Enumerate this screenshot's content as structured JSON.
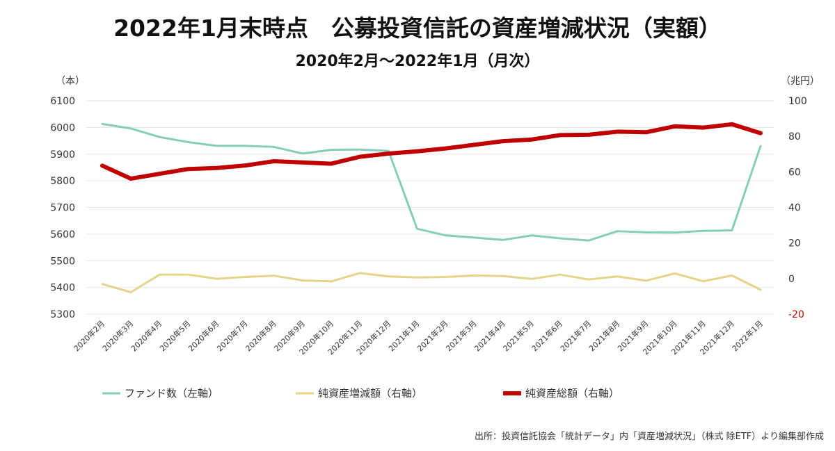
{
  "title": "2022年1月末時点　公募投資信託の資産増減状況（実額）",
  "subtitle": "2020年2月～2022年1月（月次）",
  "source": "出所：投資信託協会「統計データ」内「資産増減状況」（株式 除ETF）より編集部作成",
  "chart_data": {
    "type": "line",
    "title": "2022年1月末時点　公募投資信託の資産増減状況（実額）",
    "subtitle": "2020年2月～2022年1月（月次）",
    "left_axis_unit": "（本）",
    "right_axis_unit": "（兆円）",
    "left_ylim": [
      5300,
      6100
    ],
    "left_ticks": [
      "5300",
      "5400",
      "5500",
      "5600",
      "5700",
      "5800",
      "5900",
      "6000",
      "6100"
    ],
    "right_ylim": [
      -20,
      100
    ],
    "right_ticks": [
      "-20",
      "0",
      "20",
      "40",
      "60",
      "80",
      "100"
    ],
    "grid": "horizontal",
    "legend_position": "bottom",
    "categories": [
      "2020年2月",
      "2020年3月",
      "2020年4月",
      "2020年5月",
      "2020年6月",
      "2020年7月",
      "2020年8月",
      "2020年9月",
      "2020年10月",
      "2020年11月",
      "2020年12月",
      "2021年1月",
      "2021年2月",
      "2021年3月",
      "2021年4月",
      "2021年5月",
      "2021年6月",
      "2021年7月",
      "2021年8月",
      "2021年9月",
      "2021年10月",
      "2021年11月",
      "2021年12月",
      "2022年1月"
    ],
    "series": [
      {
        "name": "ファンド数（左軸）",
        "axis": "left",
        "color": "#86cdb8",
        "values": [
          6013,
          5996,
          5964,
          5945,
          5931,
          5931,
          5927,
          5902,
          5916,
          5917,
          5912,
          5620,
          5595,
          5587,
          5578,
          5595,
          5584,
          5576,
          5611,
          5607,
          5606,
          5612,
          5614,
          5930
        ]
      },
      {
        "name": "純資産増減額（右軸）",
        "axis": "right",
        "color": "#e6d38a",
        "values": [
          -3.1,
          -7.7,
          2.2,
          2.2,
          -0.1,
          0.9,
          1.6,
          -1.1,
          -1.6,
          3.1,
          1.2,
          0.6,
          0.9,
          1.7,
          1.4,
          -0.2,
          2.2,
          -0.5,
          1.2,
          -1.2,
          2.9,
          -1.5,
          1.7,
          -6.3
        ]
      },
      {
        "name": "純資産総額（右軸）",
        "axis": "right",
        "color": "#c00000",
        "values": [
          63.5,
          56.2,
          58.9,
          61.6,
          62.2,
          63.6,
          66.0,
          65.3,
          64.6,
          68.5,
          70.3,
          71.6,
          73.2,
          75.2,
          77.3,
          78.2,
          80.7,
          80.9,
          82.6,
          82.3,
          85.6,
          84.9,
          86.8,
          81.8
        ]
      }
    ]
  }
}
